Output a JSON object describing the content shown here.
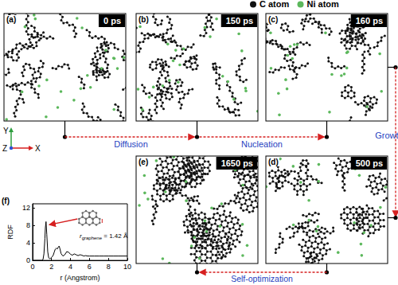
{
  "legend": [
    {
      "label": "C atom",
      "color": "#111111"
    },
    {
      "label": "Ni atom",
      "color": "#5cb85c"
    }
  ],
  "axes_indicator": {
    "labels": [
      "Y",
      "Z",
      "X"
    ]
  },
  "panels": [
    {
      "label": "(a)",
      "time": "0 ps"
    },
    {
      "label": "(b)",
      "time": "150 ps"
    },
    {
      "label": "(c)",
      "time": "160 ps"
    },
    {
      "label": "(d)",
      "time": "500 ps"
    },
    {
      "label": "(e)",
      "time": "1650 ps"
    }
  ],
  "arrows": [
    {
      "from": "(a)",
      "to": "(b)",
      "label": "Diffusion"
    },
    {
      "from": "(b)",
      "to": "(c)",
      "label": "Nucleation"
    },
    {
      "from": "(c)",
      "to": "(d)",
      "label": "Growth"
    },
    {
      "from": "(d)",
      "to": "(e)",
      "label": "Self-optimization"
    }
  ],
  "chart_data": {
    "type": "line",
    "panel": "(f)",
    "x_label": "r (Angstrom)",
    "y_label": "RDF",
    "color": "#000000",
    "x": [
      0,
      0.8,
      1.0,
      1.1,
      1.2,
      1.3,
      1.35,
      1.42,
      1.5,
      1.6,
      1.7,
      1.8,
      1.9,
      2.0,
      2.1,
      2.2,
      2.3,
      2.4,
      2.5,
      2.6,
      2.7,
      2.8,
      2.9,
      3.0,
      3.2,
      3.4,
      3.6,
      3.8,
      4.0,
      4.2,
      4.4,
      4.6,
      4.8,
      5.0,
      5.2,
      5.4,
      5.6,
      5.8,
      6.0,
      6.5,
      7,
      7.5,
      8,
      8.5,
      9,
      9.5,
      10
    ],
    "values": [
      0,
      0,
      0,
      0.2,
      1.5,
      5,
      7.5,
      8.9,
      6,
      2,
      0.6,
      0.4,
      0.5,
      0.7,
      0.9,
      1.3,
      2,
      2.6,
      2.8,
      2.6,
      3.0,
      3.3,
      2.6,
      1.6,
      1.0,
      1.3,
      2.0,
      1.9,
      1.4,
      1.2,
      1.5,
      1.3,
      1.1,
      1.3,
      1.2,
      1.0,
      1.1,
      1.0,
      1.0,
      1.0,
      1.0,
      1.0,
      1.0,
      1.0,
      1.0,
      1.0,
      1.0
    ],
    "xlim": [
      0,
      10
    ],
    "xticks": [
      0,
      2,
      4,
      6,
      8,
      10
    ],
    "ylim": [
      0,
      13
    ],
    "yticks": [
      0,
      4,
      8,
      12
    ],
    "grid": false,
    "annotation": {
      "symbol": "r",
      "subscript": "graphene",
      "text": "= 1.42 Å",
      "r": 1.42
    }
  }
}
